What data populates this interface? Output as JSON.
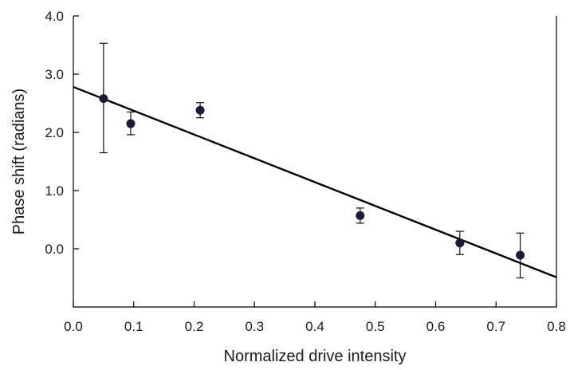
{
  "chart_data": {
    "type": "scatter",
    "title": "",
    "xlabel": "Normalized drive intensity",
    "ylabel": "Phase shift (radians)",
    "xlim": [
      0.0,
      0.8
    ],
    "ylim": [
      -1.0,
      4.0
    ],
    "xticks": [
      "0.0",
      "0.1",
      "0.2",
      "0.3",
      "0.4",
      "0.5",
      "0.6",
      "0.7",
      "0.8"
    ],
    "yticks": [
      "0.0",
      "1.0",
      "2.0",
      "3.0",
      "4.0"
    ],
    "grid": false,
    "marker_color": "#1c1a3a",
    "points": [
      {
        "x": 0.05,
        "y": 2.58,
        "err_low": 1.65,
        "err_high": 3.53
      },
      {
        "x": 0.095,
        "y": 2.15,
        "err_low": 1.96,
        "err_high": 2.35
      },
      {
        "x": 0.21,
        "y": 2.38,
        "err_low": 2.25,
        "err_high": 2.51
      },
      {
        "x": 0.475,
        "y": 0.57,
        "err_low": 0.44,
        "err_high": 0.7
      },
      {
        "x": 0.64,
        "y": 0.1,
        "err_low": -0.1,
        "err_high": 0.3
      },
      {
        "x": 0.74,
        "y": -0.11,
        "err_low": -0.5,
        "err_high": 0.27
      }
    ],
    "fit_line": {
      "x": [
        0.0,
        0.8
      ],
      "y": [
        2.78,
        -0.49
      ]
    }
  }
}
